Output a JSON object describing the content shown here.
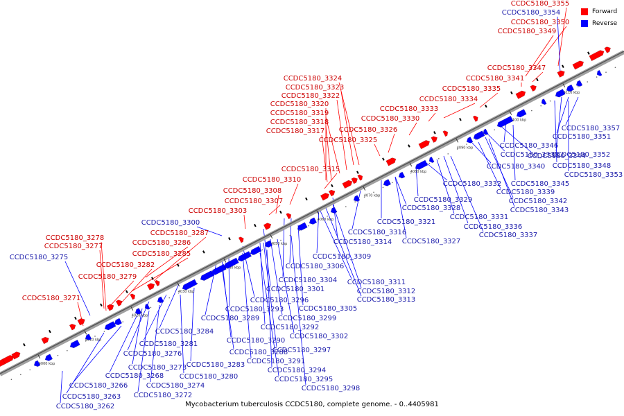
{
  "caption": "Mycobacterium tuberculosis CCDC5180, complete genome. - 0..4405981",
  "legend": [
    {
      "label": "Forward",
      "color": "#ff0000"
    },
    {
      "label": "Reverse",
      "color": "#0000ff"
    }
  ],
  "colors": {
    "forward": "#ff0000",
    "reverse": "#0000ff",
    "backbone": "#808080",
    "forward_label": "#cc0000",
    "reverse_label": "#1a1aaa"
  },
  "ticks": [
    "4000 kbp",
    "4010 kbp",
    "4020 kbp",
    "4030 kbp",
    "4040 kbp",
    "4050 kbp",
    "4060 kbp",
    "4070 kbp",
    "4080 kbp",
    "4090 kbp",
    "4100 kbp",
    "4110 kbp"
  ],
  "forward_labels": [
    "CCDC5180_3355",
    "CCDC5180_3350",
    "CCDC5180_3349",
    "CCDC5180_3347",
    "CCDC5180_3341",
    "CCDC5180_3335",
    "CCDC5180_3334",
    "CCDC5180_3333",
    "CCDC5180_3330",
    "CCDC5180_3326",
    "CCDC5180_3325",
    "CCDC5180_3324",
    "CCDC5180_3323",
    "CCDC5180_3322",
    "CCDC5180_3320",
    "CCDC5180_3319",
    "CCDC5180_3318",
    "CCDC5180_3317",
    "CCDC5180_3315",
    "CCDC5180_3310",
    "CCDC5180_3308",
    "CCDC5180_3307",
    "CCDC5180_3303",
    "CCDC5180_3287",
    "CCDC5180_3286",
    "CCDC5180_3285",
    "CCDC5180_3282",
    "CCDC5180_3279",
    "CCDC5180_3278",
    "CCDC5180_3277",
    "CCDC5180_3271"
  ],
  "reverse_labels_top": [
    "CCDC5180_3354",
    "CCDC5180_3300",
    "CCDC5180_3275"
  ],
  "reverse_labels": [
    "CCDC5180_3357",
    "CCDC5180_3351",
    "CCDC5180_3346",
    "CCDC5180_3352",
    "CCDC5180_3344",
    "CCDC5180_3348",
    "CCDC5180_3338",
    "CCDC5180_3353",
    "CCDC5180_3340",
    "CCDC5180_3345",
    "CCDC5180_3332",
    "CCDC5180_3339",
    "CCDC5180_3342",
    "CCDC5180_3329",
    "CCDC5180_3328",
    "CCDC5180_3343",
    "CCDC5180_3331",
    "CCDC5180_3321",
    "CCDC5180_3336",
    "CCDC5180_3316",
    "CCDC5180_3327",
    "CCDC5180_3337",
    "CCDC5180_3314",
    "CCDC5180_3309",
    "CCDC5180_3306",
    "CCDC5180_3304",
    "CCDC5180_3311",
    "CCDC5180_3301",
    "CCDC5180_3312",
    "CCDC5180_3313",
    "CCDC5180_3296",
    "CCDC5180_3305",
    "CCDC5180_3293",
    "CCDC5180_3299",
    "CCDC5180_3289",
    "CCDC5180_3292",
    "CCDC5180_3284",
    "CCDC5180_3302",
    "CCDC5180_3290",
    "CCDC5180_3281",
    "CCDC5180_3297",
    "CCDC5180_3276",
    "CCDC5180_3288",
    "CCDC5180_3291",
    "CCDC5180_3273",
    "CCDC5180_3283",
    "CCDC5180_3294",
    "CCDC5180_3268",
    "CCDC5180_3280",
    "CCDC5180_3295",
    "CCDC5180_3266",
    "CCDC5180_3274",
    "CCDC5180_3298",
    "CCDC5180_3263",
    "CCDC5180_3272",
    "CCDC5180_3262"
  ]
}
